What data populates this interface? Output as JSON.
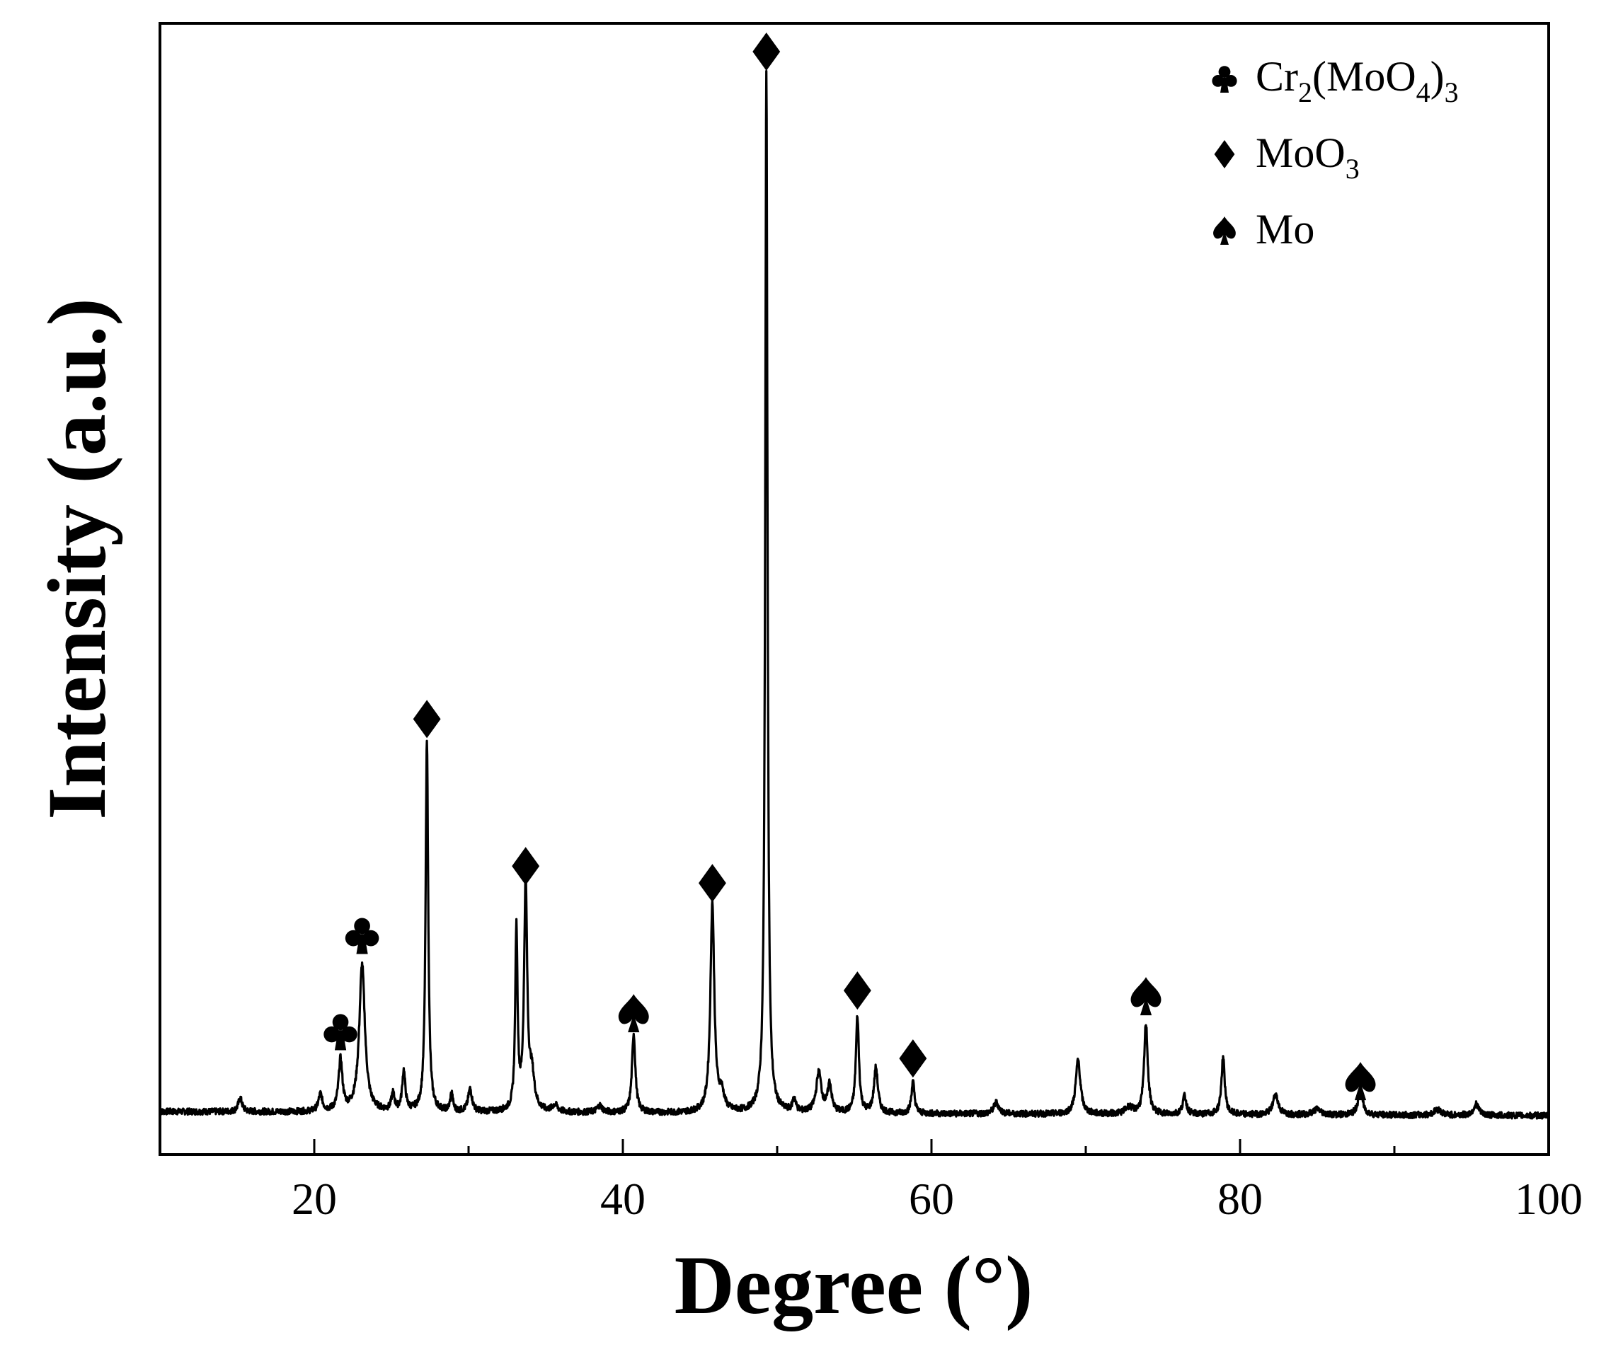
{
  "chart_data": {
    "type": "line",
    "title": "",
    "xlabel": "Degree (°)",
    "ylabel": "Intensity (a.u.)",
    "xlim": [
      10,
      100
    ],
    "ylim": [
      0,
      100
    ],
    "y_ticks_shown": false,
    "grid": false,
    "x_ticks": [
      20,
      40,
      60,
      80,
      100
    ],
    "series": [
      {
        "name": "",
        "color": "#000000",
        "baseline": 3.8,
        "peaks": [
          {
            "x": 15.2,
            "h": 1.2,
            "w": 0.15
          },
          {
            "x": 20.4,
            "h": 1.5,
            "w": 0.15
          },
          {
            "x": 21.7,
            "h": 4.5,
            "w": 0.15
          },
          {
            "x": 23.1,
            "h": 13.0,
            "w": 0.22
          },
          {
            "x": 25.1,
            "h": 1.5,
            "w": 0.12
          },
          {
            "x": 25.8,
            "h": 3.5,
            "w": 0.12
          },
          {
            "x": 27.3,
            "h": 33.0,
            "w": 0.1
          },
          {
            "x": 28.9,
            "h": 1.6,
            "w": 0.1
          },
          {
            "x": 30.1,
            "h": 2.0,
            "w": 0.15
          },
          {
            "x": 33.1,
            "h": 16.0,
            "w": 0.09
          },
          {
            "x": 33.7,
            "h": 20.0,
            "w": 0.12
          },
          {
            "x": 34.1,
            "h": 3.0,
            "w": 0.2
          },
          {
            "x": 35.6,
            "h": 0.6,
            "w": 0.2
          },
          {
            "x": 38.5,
            "h": 0.6,
            "w": 0.2
          },
          {
            "x": 40.7,
            "h": 7.0,
            "w": 0.13
          },
          {
            "x": 45.8,
            "h": 18.5,
            "w": 0.15
          },
          {
            "x": 46.4,
            "h": 1.5,
            "w": 0.2
          },
          {
            "x": 49.3,
            "h": 92.0,
            "w": 0.09
          },
          {
            "x": 51.1,
            "h": 1.2,
            "w": 0.12
          },
          {
            "x": 52.7,
            "h": 3.5,
            "w": 0.2
          },
          {
            "x": 53.4,
            "h": 2.5,
            "w": 0.15
          },
          {
            "x": 55.2,
            "h": 8.5,
            "w": 0.12
          },
          {
            "x": 56.4,
            "h": 4.0,
            "w": 0.15
          },
          {
            "x": 58.8,
            "h": 2.8,
            "w": 0.12
          },
          {
            "x": 64.2,
            "h": 1.0,
            "w": 0.2
          },
          {
            "x": 69.5,
            "h": 4.8,
            "w": 0.18
          },
          {
            "x": 72.8,
            "h": 0.6,
            "w": 0.3
          },
          {
            "x": 73.9,
            "h": 8.0,
            "w": 0.14
          },
          {
            "x": 76.4,
            "h": 1.6,
            "w": 0.15
          },
          {
            "x": 78.9,
            "h": 5.0,
            "w": 0.13
          },
          {
            "x": 82.3,
            "h": 1.8,
            "w": 0.2
          },
          {
            "x": 85.0,
            "h": 0.5,
            "w": 0.3
          },
          {
            "x": 87.8,
            "h": 2.2,
            "w": 0.18
          },
          {
            "x": 92.8,
            "h": 0.5,
            "w": 0.3
          },
          {
            "x": 95.3,
            "h": 1.0,
            "w": 0.2
          }
        ]
      }
    ],
    "annotations": [
      {
        "symbol": "club",
        "x": 21.7,
        "y": 11.0
      },
      {
        "symbol": "club",
        "x": 23.1,
        "y": 19.5
      },
      {
        "symbol": "diamond",
        "x": 27.3,
        "y": 38.5
      },
      {
        "symbol": "diamond",
        "x": 33.7,
        "y": 25.5
      },
      {
        "symbol": "diamond",
        "x": 45.8,
        "y": 24.0
      },
      {
        "symbol": "diamond",
        "x": 49.3,
        "y": 97.5
      },
      {
        "symbol": "diamond",
        "x": 55.2,
        "y": 14.5
      },
      {
        "symbol": "diamond",
        "x": 58.8,
        "y": 8.5
      },
      {
        "symbol": "spade",
        "x": 40.7,
        "y": 12.5
      },
      {
        "symbol": "spade",
        "x": 73.9,
        "y": 14.0
      },
      {
        "symbol": "spade",
        "x": 87.8,
        "y": 6.5
      }
    ],
    "legend": {
      "placement": "top-right",
      "entries": [
        {
          "symbol": "club",
          "parts": [
            {
              "t": "Cr"
            },
            {
              "t": "2",
              "sub": true
            },
            {
              "t": "(MoO"
            },
            {
              "t": "4",
              "sub": true
            },
            {
              "t": ")"
            },
            {
              "t": "3",
              "sub": true
            }
          ]
        },
        {
          "symbol": "diamond",
          "parts": [
            {
              "t": "MoO"
            },
            {
              "t": "3",
              "sub": true
            }
          ]
        },
        {
          "symbol": "spade",
          "parts": [
            {
              "t": "Mo"
            }
          ]
        }
      ]
    }
  }
}
